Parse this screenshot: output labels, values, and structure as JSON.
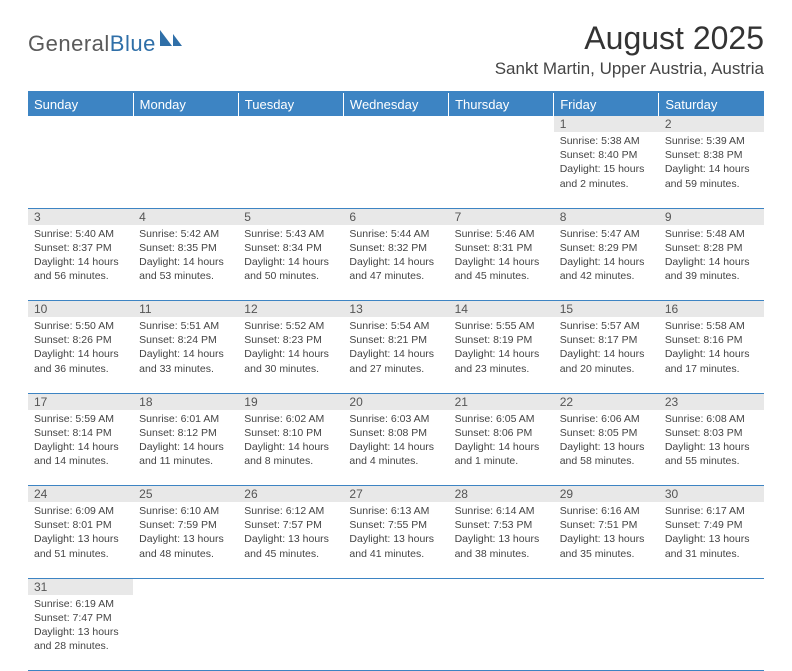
{
  "logo": {
    "general": "General",
    "blue": "Blue"
  },
  "title": "August 2025",
  "location": "Sankt Martin, Upper Austria, Austria",
  "colors": {
    "header_bg": "#3d84c3",
    "header_text": "#ffffff",
    "daynum_bg": "#e8e8e8",
    "rule": "#3d84c3",
    "logo_gray": "#5a5a5a",
    "logo_blue": "#2f6fa8"
  },
  "day_headers": [
    "Sunday",
    "Monday",
    "Tuesday",
    "Wednesday",
    "Thursday",
    "Friday",
    "Saturday"
  ],
  "weeks": [
    {
      "nums": [
        "",
        "",
        "",
        "",
        "",
        "1",
        "2"
      ],
      "details": [
        "",
        "",
        "",
        "",
        "",
        "Sunrise: 5:38 AM\nSunset: 8:40 PM\nDaylight: 15 hours and 2 minutes.",
        "Sunrise: 5:39 AM\nSunset: 8:38 PM\nDaylight: 14 hours and 59 minutes."
      ]
    },
    {
      "nums": [
        "3",
        "4",
        "5",
        "6",
        "7",
        "8",
        "9"
      ],
      "details": [
        "Sunrise: 5:40 AM\nSunset: 8:37 PM\nDaylight: 14 hours and 56 minutes.",
        "Sunrise: 5:42 AM\nSunset: 8:35 PM\nDaylight: 14 hours and 53 minutes.",
        "Sunrise: 5:43 AM\nSunset: 8:34 PM\nDaylight: 14 hours and 50 minutes.",
        "Sunrise: 5:44 AM\nSunset: 8:32 PM\nDaylight: 14 hours and 47 minutes.",
        "Sunrise: 5:46 AM\nSunset: 8:31 PM\nDaylight: 14 hours and 45 minutes.",
        "Sunrise: 5:47 AM\nSunset: 8:29 PM\nDaylight: 14 hours and 42 minutes.",
        "Sunrise: 5:48 AM\nSunset: 8:28 PM\nDaylight: 14 hours and 39 minutes."
      ]
    },
    {
      "nums": [
        "10",
        "11",
        "12",
        "13",
        "14",
        "15",
        "16"
      ],
      "details": [
        "Sunrise: 5:50 AM\nSunset: 8:26 PM\nDaylight: 14 hours and 36 minutes.",
        "Sunrise: 5:51 AM\nSunset: 8:24 PM\nDaylight: 14 hours and 33 minutes.",
        "Sunrise: 5:52 AM\nSunset: 8:23 PM\nDaylight: 14 hours and 30 minutes.",
        "Sunrise: 5:54 AM\nSunset: 8:21 PM\nDaylight: 14 hours and 27 minutes.",
        "Sunrise: 5:55 AM\nSunset: 8:19 PM\nDaylight: 14 hours and 23 minutes.",
        "Sunrise: 5:57 AM\nSunset: 8:17 PM\nDaylight: 14 hours and 20 minutes.",
        "Sunrise: 5:58 AM\nSunset: 8:16 PM\nDaylight: 14 hours and 17 minutes."
      ]
    },
    {
      "nums": [
        "17",
        "18",
        "19",
        "20",
        "21",
        "22",
        "23"
      ],
      "details": [
        "Sunrise: 5:59 AM\nSunset: 8:14 PM\nDaylight: 14 hours and 14 minutes.",
        "Sunrise: 6:01 AM\nSunset: 8:12 PM\nDaylight: 14 hours and 11 minutes.",
        "Sunrise: 6:02 AM\nSunset: 8:10 PM\nDaylight: 14 hours and 8 minutes.",
        "Sunrise: 6:03 AM\nSunset: 8:08 PM\nDaylight: 14 hours and 4 minutes.",
        "Sunrise: 6:05 AM\nSunset: 8:06 PM\nDaylight: 14 hours and 1 minute.",
        "Sunrise: 6:06 AM\nSunset: 8:05 PM\nDaylight: 13 hours and 58 minutes.",
        "Sunrise: 6:08 AM\nSunset: 8:03 PM\nDaylight: 13 hours and 55 minutes."
      ]
    },
    {
      "nums": [
        "24",
        "25",
        "26",
        "27",
        "28",
        "29",
        "30"
      ],
      "details": [
        "Sunrise: 6:09 AM\nSunset: 8:01 PM\nDaylight: 13 hours and 51 minutes.",
        "Sunrise: 6:10 AM\nSunset: 7:59 PM\nDaylight: 13 hours and 48 minutes.",
        "Sunrise: 6:12 AM\nSunset: 7:57 PM\nDaylight: 13 hours and 45 minutes.",
        "Sunrise: 6:13 AM\nSunset: 7:55 PM\nDaylight: 13 hours and 41 minutes.",
        "Sunrise: 6:14 AM\nSunset: 7:53 PM\nDaylight: 13 hours and 38 minutes.",
        "Sunrise: 6:16 AM\nSunset: 7:51 PM\nDaylight: 13 hours and 35 minutes.",
        "Sunrise: 6:17 AM\nSunset: 7:49 PM\nDaylight: 13 hours and 31 minutes."
      ]
    },
    {
      "nums": [
        "31",
        "",
        "",
        "",
        "",
        "",
        ""
      ],
      "details": [
        "Sunrise: 6:19 AM\nSunset: 7:47 PM\nDaylight: 13 hours and 28 minutes.",
        "",
        "",
        "",
        "",
        "",
        ""
      ]
    }
  ]
}
